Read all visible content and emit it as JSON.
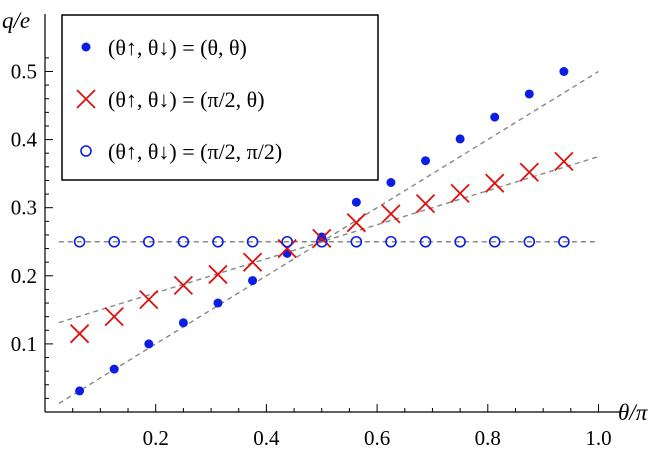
{
  "chart_data": {
    "type": "scatter",
    "title": "",
    "xlabel": "θ/π",
    "ylabel": "q/e",
    "xlim": [
      0,
      1.03
    ],
    "ylim": [
      0,
      0.53
    ],
    "x_ticks": [
      "0.2",
      "0.4",
      "0.6",
      "0.8",
      "1.0"
    ],
    "y_ticks": [
      "0.1",
      "0.2",
      "0.3",
      "0.4",
      "0.5"
    ],
    "legend_position": "top-left",
    "series": [
      {
        "name": "(θ↑, θ↓) = (θ, θ)",
        "marker": "filled-circle",
        "color": "#0a1ee6",
        "x": [
          0.0625,
          0.125,
          0.1875,
          0.25,
          0.3125,
          0.375,
          0.4375,
          0.5,
          0.5625,
          0.625,
          0.6875,
          0.75,
          0.8125,
          0.875,
          0.9375
        ],
        "y": [
          0.031,
          0.063,
          0.1,
          0.131,
          0.16,
          0.193,
          0.233,
          0.257,
          0.308,
          0.337,
          0.369,
          0.401,
          0.433,
          0.467,
          0.5
        ]
      },
      {
        "name": "(θ↑, θ↓) = (π/2, θ)",
        "marker": "x",
        "color": "#e01010",
        "x": [
          0.0625,
          0.125,
          0.1875,
          0.25,
          0.3125,
          0.375,
          0.4375,
          0.5,
          0.5625,
          0.625,
          0.6875,
          0.75,
          0.8125,
          0.875,
          0.9375
        ],
        "y": [
          0.115,
          0.14,
          0.165,
          0.186,
          0.202,
          0.22,
          0.24,
          0.255,
          0.278,
          0.291,
          0.306,
          0.321,
          0.336,
          0.352,
          0.368
        ]
      },
      {
        "name": "(θ↑, θ↓) = (π/2, π/2)",
        "marker": "open-circle",
        "color": "#0a1ee6",
        "x": [
          0.0625,
          0.125,
          0.1875,
          0.25,
          0.3125,
          0.375,
          0.4375,
          0.5,
          0.5625,
          0.625,
          0.6875,
          0.75,
          0.8125,
          0.875,
          0.9375
        ],
        "y": [
          0.25,
          0.25,
          0.25,
          0.25,
          0.25,
          0.25,
          0.25,
          0.25,
          0.25,
          0.25,
          0.25,
          0.25,
          0.25,
          0.25,
          0.25
        ]
      }
    ],
    "fit_lines": [
      {
        "x": [
          0,
          1
        ],
        "y": [
          0.0,
          0.5
        ],
        "style": "dashed",
        "color": "#888888"
      },
      {
        "x": [
          0,
          1
        ],
        "y": [
          0.125,
          0.375
        ],
        "style": "dashed",
        "color": "#888888"
      },
      {
        "x": [
          0,
          1
        ],
        "y": [
          0.25,
          0.25
        ],
        "style": "dashed",
        "color": "#888888"
      }
    ]
  }
}
